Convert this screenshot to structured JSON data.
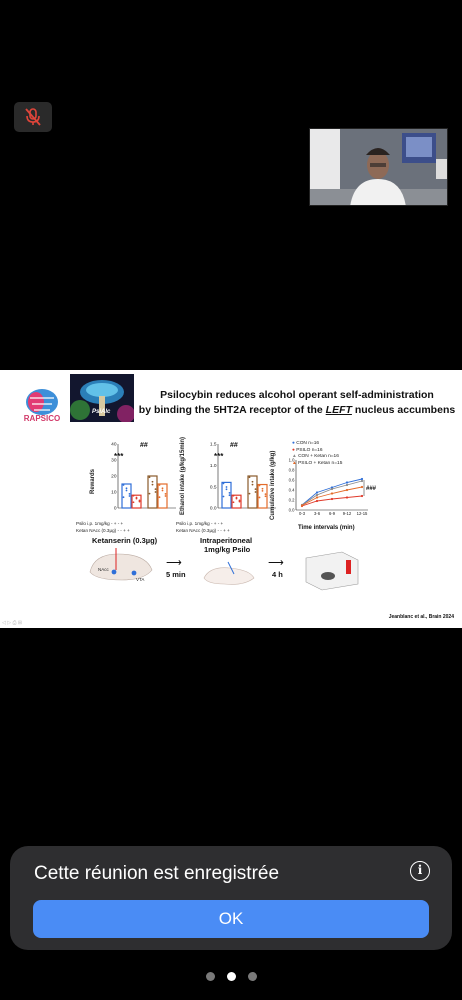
{
  "controls": {
    "mic_icon": "muted-microphone-icon",
    "mic_color": "#e0453a"
  },
  "slide": {
    "title_part1": "Psilocybin reduces alcohol operant self-administration",
    "title_part2": "by binding the 5HT2A receptor of the ",
    "title_emph": "LEFT",
    "title_part3": " nucleus accumbens",
    "logo_text": "RAPSICO",
    "art_label": "PsiAlc",
    "chart1": {
      "ylabel": "Rewards",
      "yticks": [
        "40",
        "30",
        "20",
        "10",
        "0"
      ],
      "sig_left": "***",
      "sig_right": "##",
      "row1": "Psilo i.p. 1mg/kg -   +     -   +",
      "row2": "Ketan NAcc (0.3μg)  -   -     +   +"
    },
    "chart2": {
      "ylabel": "Ethanol intake (g/kg/15min)",
      "yticks": [
        "1.5",
        "1.0",
        "0.5",
        "0.0"
      ],
      "sig_left": "***",
      "sig_right": "##",
      "row1": "Psilo i.p. 1mg/kg -   +     -   +",
      "row2": "Ketan NAcc (0.3μg)  -   -     +   +"
    },
    "chart3": {
      "ylabel": "Cumulative intake (g/kg)",
      "yticks": [
        "1.0",
        "0.8",
        "0.6",
        "0.4",
        "0.2",
        "0.0"
      ],
      "xticks": [
        "0-3",
        "3-6",
        "6-9",
        "9-12",
        "12-15"
      ],
      "xlabel": "Time intervals (min)",
      "sig": "###",
      "legend": [
        "CON n=16",
        "PSILO n=16",
        "CON + Ketan n=16",
        "PSILO + Ketan n=15"
      ]
    },
    "protocol": {
      "step1": "Ketanserin (0.3µg)",
      "step2_line1": "Intraperitoneal",
      "step2_line2": "1mg/kg Psilo",
      "delay1": "5 min",
      "delay2": "4 h",
      "label_nacc": "NAcc",
      "label_vta": "VTA"
    },
    "citation": "Jeanblanc et al., Brain 2024"
  },
  "banner": {
    "message": "Cette réunion est enregistrée",
    "ok_label": "OK",
    "info_icon": "i"
  },
  "chart_data": [
    {
      "type": "bar",
      "categories": [
        "-/-",
        "+/-",
        "-/+",
        "+/+"
      ],
      "values": [
        15,
        8,
        20,
        15
      ],
      "ylabel": "Rewards",
      "ylim": [
        0,
        40
      ],
      "colors": [
        "#2f6fd8",
        "#e03a2a",
        "#8a5a2b",
        "#e36b2a"
      ]
    },
    {
      "type": "bar",
      "categories": [
        "-/-",
        "+/-",
        "-/+",
        "+/+"
      ],
      "values": [
        0.6,
        0.3,
        0.75,
        0.55
      ],
      "ylabel": "Ethanol intake (g/kg/15min)",
      "ylim": [
        0,
        1.5
      ],
      "colors": [
        "#2f6fd8",
        "#e03a2a",
        "#8a5a2b",
        "#e36b2a"
      ]
    },
    {
      "type": "line",
      "x": [
        "0-3",
        "3-6",
        "6-9",
        "9-12",
        "12-15"
      ],
      "ylabel": "Cumulative intake (g/kg)",
      "xlabel": "Time intervals (min)",
      "ylim": [
        0,
        1.0
      ],
      "series": [
        {
          "name": "CON n=16",
          "values": [
            0.1,
            0.35,
            0.45,
            0.55,
            0.62
          ],
          "color": "#2f6fd8"
        },
        {
          "name": "PSILO n=16",
          "values": [
            0.08,
            0.18,
            0.22,
            0.25,
            0.28
          ],
          "color": "#e03a2a"
        },
        {
          "name": "CON + Ketan n=16",
          "values": [
            0.1,
            0.3,
            0.42,
            0.5,
            0.58
          ],
          "color": "#8a8a8a"
        },
        {
          "name": "PSILO + Ketan n=15",
          "values": [
            0.09,
            0.25,
            0.33,
            0.4,
            0.46
          ],
          "color": "#e36b2a"
        }
      ]
    }
  ]
}
